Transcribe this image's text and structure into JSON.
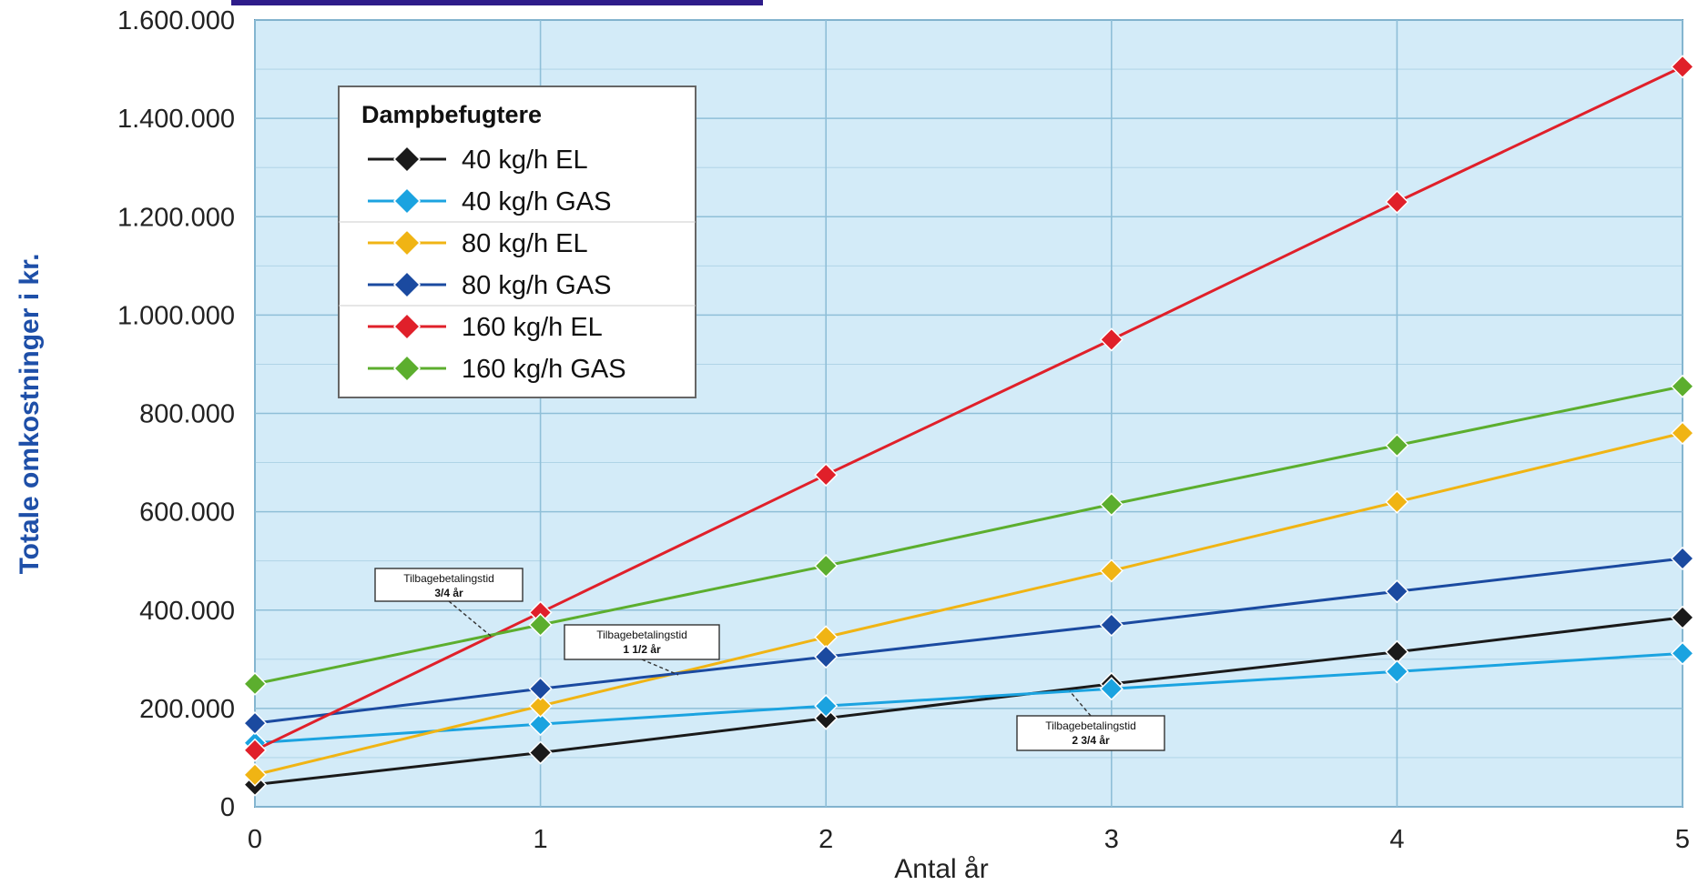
{
  "chart_data": {
    "type": "line",
    "xlabel": "Antal år",
    "ylabel": "Totale omkostninger i kr.",
    "x": [
      0,
      1,
      2,
      3,
      4,
      5
    ],
    "xlim": [
      0,
      5
    ],
    "ylim": [
      0,
      1600000
    ],
    "x_tick_labels": [
      "0",
      "1",
      "2",
      "3",
      "4",
      "5"
    ],
    "y_ticks": [
      0,
      200000,
      400000,
      600000,
      800000,
      1000000,
      1200000,
      1400000,
      1600000
    ],
    "y_tick_labels": [
      "0",
      "200.000",
      "400.000",
      "600.000",
      "800.000",
      "1.000.000",
      "1.200.000",
      "1.400.000",
      "1.600.000"
    ],
    "grid": true,
    "legend": {
      "title": "Dampbefugtere",
      "placement": "top-left"
    },
    "series": [
      {
        "name": "40 kg/h EL",
        "color": "#1a1a1a",
        "values": [
          45000,
          110000,
          180000,
          250000,
          315000,
          385000
        ]
      },
      {
        "name": "40 kg/h GAS",
        "color": "#1ba3e0",
        "values": [
          130000,
          168000,
          205000,
          240000,
          275000,
          312000
        ]
      },
      {
        "name": "80 kg/h EL",
        "color": "#f0b414",
        "values": [
          65000,
          205000,
          345000,
          480000,
          620000,
          760000
        ]
      },
      {
        "name": "80 kg/h GAS",
        "color": "#1b4aa0",
        "values": [
          170000,
          240000,
          305000,
          370000,
          438000,
          505000
        ]
      },
      {
        "name": "160 kg/h EL",
        "color": "#e0202a",
        "values": [
          115000,
          395000,
          675000,
          950000,
          1230000,
          1505000
        ]
      },
      {
        "name": "160 kg/h GAS",
        "color": "#5cae2e",
        "values": [
          250000,
          370000,
          490000,
          615000,
          735000,
          855000
        ]
      }
    ],
    "annotations": [
      {
        "line1": "Tilbagebetalingstid",
        "line2": "3/4 år",
        "x": 0.8,
        "y": 345000
      },
      {
        "line1": "Tilbagebetalingstid",
        "line2": "1 1/2 år",
        "x": 1.45,
        "y": 270000
      },
      {
        "line1": "Tilbagebetalingstid",
        "line2": "2 3/4 år",
        "x": 2.75,
        "y": 245000
      }
    ]
  },
  "colors": {
    "plot_background": "#d3ebf8",
    "grid": "#8fbfd8",
    "axis_title": "#1e4fa8",
    "top_bar": "#2e1c8a"
  }
}
